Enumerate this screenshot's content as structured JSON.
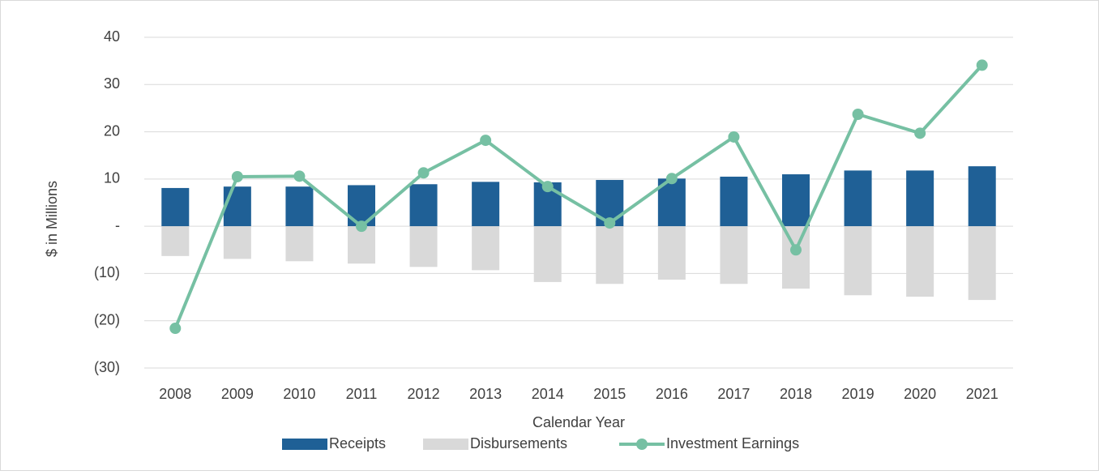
{
  "chart_data": {
    "type": "bar-line",
    "y_label": "$ in Millions",
    "x_label": "Calendar Year",
    "categories": [
      "2008",
      "2009",
      "2010",
      "2011",
      "2012",
      "2013",
      "2014",
      "2015",
      "2016",
      "2017",
      "2018",
      "2019",
      "2020",
      "2021"
    ],
    "series": [
      {
        "name": "Receipts",
        "kind": "bar",
        "color": "#1f6096",
        "values": [
          8.1,
          8.4,
          8.4,
          8.7,
          8.9,
          9.4,
          9.3,
          9.8,
          10.1,
          10.5,
          11.0,
          11.8,
          11.8,
          12.7
        ]
      },
      {
        "name": "Disbursements",
        "kind": "bar",
        "color": "#d9d9d9",
        "values": [
          -6.3,
          -6.9,
          -7.4,
          -7.9,
          -8.6,
          -9.3,
          -11.8,
          -12.2,
          -11.3,
          -12.2,
          -13.2,
          -14.6,
          -14.9,
          -15.6
        ]
      },
      {
        "name": "Investment Earnings",
        "kind": "line",
        "color": "#76c0a3",
        "values": [
          -21.6,
          10.5,
          10.6,
          0,
          11.3,
          18.2,
          8.4,
          0.7,
          10.1,
          18.9,
          -5.0,
          23.7,
          19.7,
          34.1
        ]
      }
    ],
    "ylim": [
      -30,
      40
    ],
    "yticks": [
      {
        "value": -30,
        "label": "(30)"
      },
      {
        "value": -20,
        "label": "(20)"
      },
      {
        "value": -10,
        "label": "(10)"
      },
      {
        "value": 0,
        "label": "-"
      },
      10,
      20,
      30,
      40
    ],
    "grid": true,
    "legend": "bottom"
  }
}
